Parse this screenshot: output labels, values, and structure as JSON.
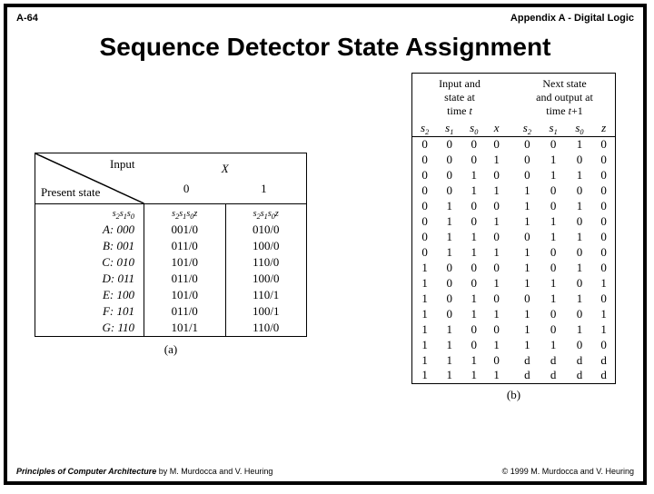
{
  "header": {
    "left": "A-64",
    "right": "Appendix A - Digital Logic"
  },
  "title": "Sequence Detector State Assignment",
  "footer": {
    "book": "Principles of Computer Architecture",
    "authors": " by M. Murdocca and V. Heuring",
    "right": "© 1999 M. Murdocca and V. Heuring"
  },
  "tableA": {
    "diag": {
      "input": "Input",
      "present": "Present state"
    },
    "xlabel": "X",
    "cols": [
      "0",
      "1"
    ],
    "sub_present": "s",
    "sub_present_idx": [
      "2",
      "1",
      "0"
    ],
    "sub_next": "s",
    "sub_next_idx": [
      "2",
      "1",
      "0"
    ],
    "z": "z",
    "rows": [
      {
        "label": "A:",
        "code": "000",
        "c0": "001/0",
        "c1": "010/0"
      },
      {
        "label": "B:",
        "code": "001",
        "c0": "011/0",
        "c1": "100/0"
      },
      {
        "label": "C:",
        "code": "010",
        "c0": "101/0",
        "c1": "110/0"
      },
      {
        "label": "D:",
        "code": "011",
        "c0": "011/0",
        "c1": "100/0"
      },
      {
        "label": "E:",
        "code": "100",
        "c0": "101/0",
        "c1": "110/1"
      },
      {
        "label": "F:",
        "code": "101",
        "c0": "011/0",
        "c1": "100/1"
      },
      {
        "label": "G:",
        "code": "110",
        "c0": "101/1",
        "c1": "110/0"
      }
    ],
    "caption": "(a)"
  },
  "tableB": {
    "head_left_l1": "Input and",
    "head_left_l2": "state at",
    "head_left_l3_a": "time ",
    "head_left_l3_b": "t",
    "head_right_l1": "Next state",
    "head_right_l2": "and output at",
    "head_right_l3_a": "time ",
    "head_right_l3_b": "t",
    "head_right_l3_c": "+1",
    "cols_in": [
      "s",
      "s",
      "s",
      "x"
    ],
    "cols_in_idx": [
      "2",
      "1",
      "0",
      ""
    ],
    "cols_out": [
      "s",
      "s",
      "s",
      "z"
    ],
    "cols_out_idx": [
      "2",
      "1",
      "0",
      ""
    ],
    "rows": [
      [
        "0",
        "0",
        "0",
        "0",
        "0",
        "0",
        "1",
        "0"
      ],
      [
        "0",
        "0",
        "0",
        "1",
        "0",
        "1",
        "0",
        "0"
      ],
      [
        "0",
        "0",
        "1",
        "0",
        "0",
        "1",
        "1",
        "0"
      ],
      [
        "0",
        "0",
        "1",
        "1",
        "1",
        "0",
        "0",
        "0"
      ],
      [
        "0",
        "1",
        "0",
        "0",
        "1",
        "0",
        "1",
        "0"
      ],
      [
        "0",
        "1",
        "0",
        "1",
        "1",
        "1",
        "0",
        "0"
      ],
      [
        "0",
        "1",
        "1",
        "0",
        "0",
        "1",
        "1",
        "0"
      ],
      [
        "0",
        "1",
        "1",
        "1",
        "1",
        "0",
        "0",
        "0"
      ],
      [
        "1",
        "0",
        "0",
        "0",
        "1",
        "0",
        "1",
        "0"
      ],
      [
        "1",
        "0",
        "0",
        "1",
        "1",
        "1",
        "0",
        "1"
      ],
      [
        "1",
        "0",
        "1",
        "0",
        "0",
        "1",
        "1",
        "0"
      ],
      [
        "1",
        "0",
        "1",
        "1",
        "1",
        "0",
        "0",
        "1"
      ],
      [
        "1",
        "1",
        "0",
        "0",
        "1",
        "0",
        "1",
        "1"
      ],
      [
        "1",
        "1",
        "0",
        "1",
        "1",
        "1",
        "0",
        "0"
      ],
      [
        "1",
        "1",
        "1",
        "0",
        "d",
        "d",
        "d",
        "d"
      ],
      [
        "1",
        "1",
        "1",
        "1",
        "d",
        "d",
        "d",
        "d"
      ]
    ],
    "caption": "(b)"
  }
}
